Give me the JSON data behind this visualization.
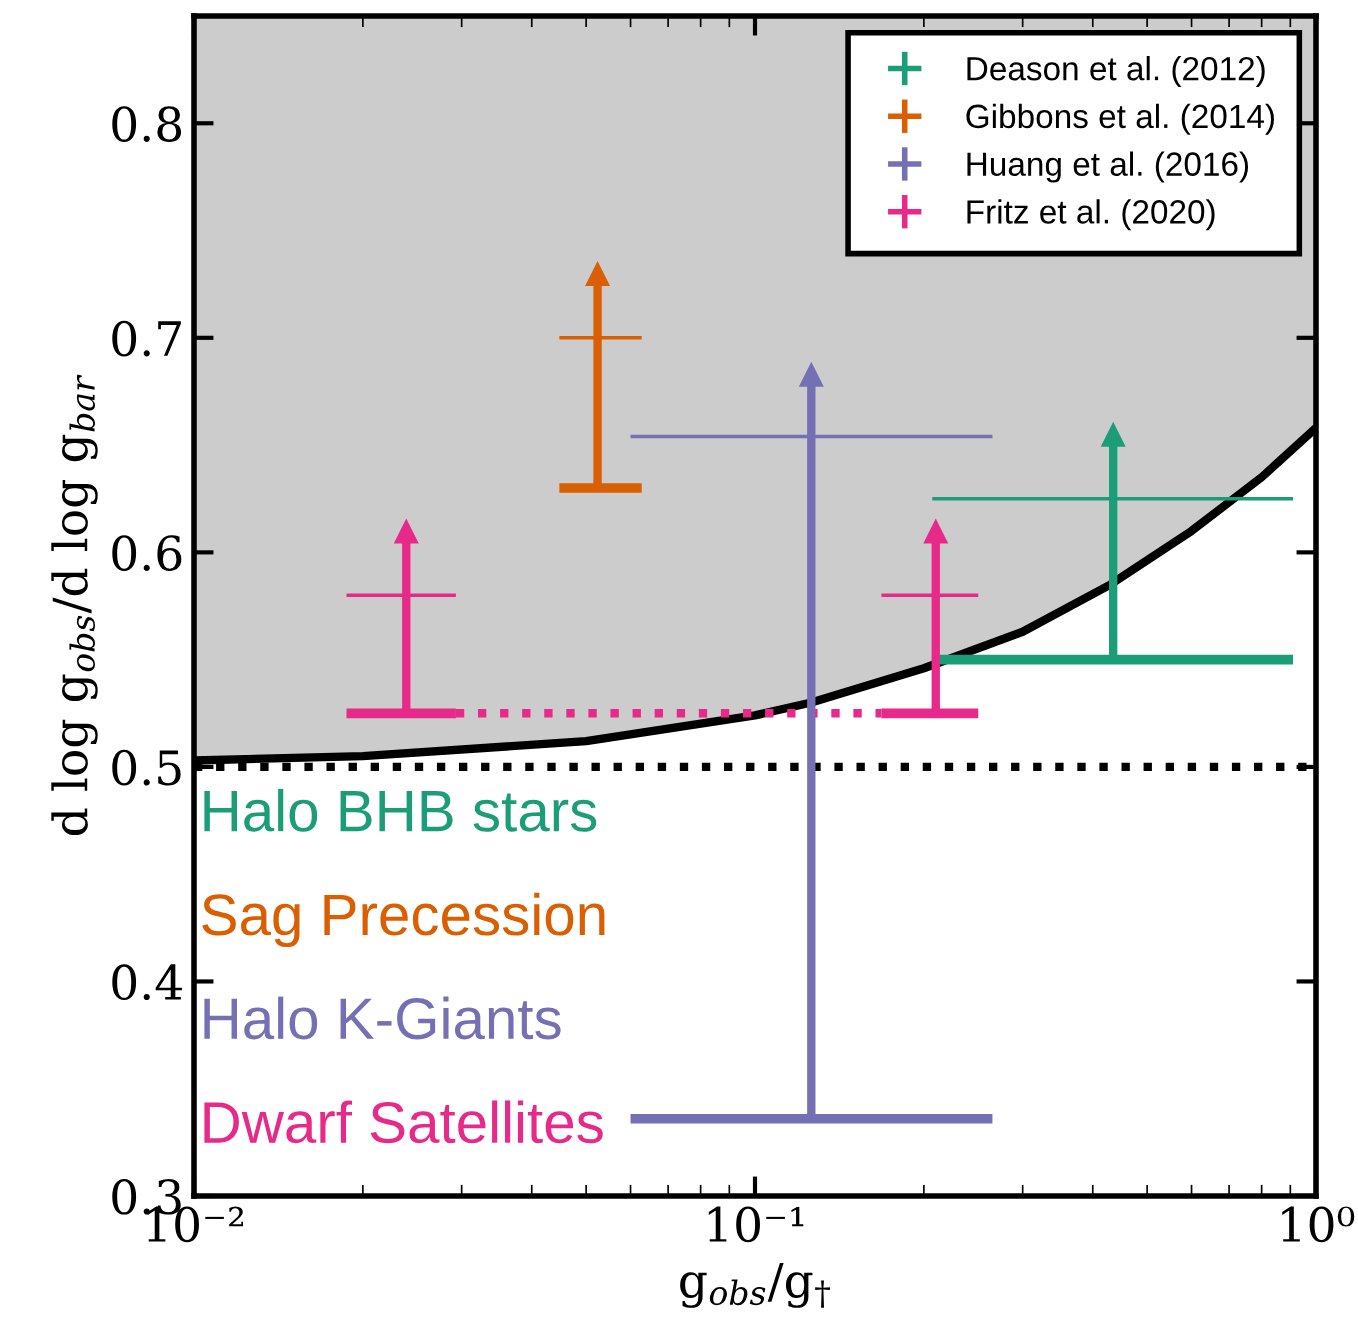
{
  "chart_data": {
    "type": "scatter",
    "xlabel": "g$_{obs}$/g$_{†}$",
    "ylabel": "d log g$_{obs}$/d log g$_{bar}$",
    "log": "x",
    "xlim": [
      0.01,
      1
    ],
    "ylim": [
      0.3,
      0.85
    ],
    "xticks": [
      {
        "value": 0.01,
        "label": "10⁻²"
      },
      {
        "value": 0.1,
        "label": "10⁻¹"
      },
      {
        "value": 1,
        "label": "10⁰"
      }
    ],
    "yticks": [
      0.3,
      0.4,
      0.5,
      0.6,
      0.7,
      0.8
    ],
    "grid": false,
    "legend": "top right",
    "marker": "none",
    "ref_lines": [
      {
        "axis": "y",
        "value": 0.5,
        "color": "#000000",
        "line_style": "dotted"
      }
    ],
    "series": [
      {
        "type": "line",
        "color": "#000000",
        "x": [
          0.01,
          0.02,
          0.05,
          0.1,
          0.126,
          0.2,
          0.3,
          0.43,
          0.6,
          0.8,
          1.0
        ],
        "values": [
          0.503,
          0.505,
          0.512,
          0.524,
          0.53,
          0.546,
          0.563,
          0.585,
          0.61,
          0.635,
          0.658
        ],
        "lower": [
          0.503,
          0.505,
          0.512,
          0.524,
          0.53,
          0.546,
          0.563,
          0.585,
          0.61,
          0.635,
          0.658
        ],
        "upper": [
          0.85,
          0.85,
          0.85,
          0.85,
          0.85,
          0.85,
          0.85,
          0.85,
          0.85,
          0.85,
          0.85
        ]
      },
      {
        "type": "line",
        "color": "#e7298a",
        "line_style": "dotted",
        "x": [
          0.0293,
          0.168
        ],
        "values": [
          0.525,
          0.525
        ]
      },
      {
        "name": "Deason et al. (2012)",
        "color": "#1b9e77",
        "marker": "triangle",
        "x": [
          0.435
        ],
        "values": [
          0.655
        ],
        "errors": [
          [
            0.55,
            0.655
          ]
        ]
      },
      {
        "name": "Gibbons et al. (2014)",
        "color": "#d95f02",
        "marker": "triangle",
        "x": [
          0.0524
        ],
        "values": [
          0.73
        ],
        "errors": [
          [
            0.63,
            0.73
          ]
        ]
      },
      {
        "name": "Huang et al. (2016)",
        "color": "#7570b3",
        "marker": "triangle",
        "x": [
          0.126
        ],
        "values": [
          0.683
        ],
        "errors": [
          [
            0.336,
            0.683
          ]
        ]
      },
      {
        "name": "Fritz et al. (2020)",
        "color": "#e7298a",
        "marker": "triangle",
        "x": [
          0.0239,
          0.21
        ],
        "values": [
          0.61,
          0.61
        ],
        "errors": [
          [
            0.525,
            0.61
          ],
          [
            0.525,
            0.61
          ]
        ]
      },
      {
        "type": "line",
        "color": "#1b9e77",
        "x": [
          0.207,
          0.91
        ],
        "values": [
          0.55,
          0.55
        ]
      },
      {
        "type": "line",
        "color": "#1b9e77",
        "x": [
          0.207,
          0.91
        ],
        "values": [
          0.625,
          0.625
        ]
      },
      {
        "type": "line",
        "color": "#d95f02",
        "x": [
          0.0448,
          0.0628
        ],
        "values": [
          0.63,
          0.63
        ]
      },
      {
        "type": "line",
        "color": "#d95f02",
        "x": [
          0.0448,
          0.0628
        ],
        "values": [
          0.7,
          0.7
        ]
      },
      {
        "type": "line",
        "color": "#7570b3",
        "x": [
          0.06,
          0.265
        ],
        "values": [
          0.336,
          0.336
        ]
      },
      {
        "type": "line",
        "color": "#7570b3",
        "x": [
          0.06,
          0.265
        ],
        "values": [
          0.654,
          0.654
        ]
      },
      {
        "type": "line",
        "color": "#e7298a",
        "x": [
          0.0187,
          0.0293
        ],
        "values": [
          0.525,
          0.525
        ]
      },
      {
        "type": "line",
        "color": "#e7298a",
        "x": [
          0.0187,
          0.0293
        ],
        "values": [
          0.58,
          0.58
        ]
      },
      {
        "type": "line",
        "color": "#e7298a",
        "x": [
          0.168,
          0.25
        ],
        "values": [
          0.525,
          0.525
        ]
      },
      {
        "type": "line",
        "color": "#e7298a",
        "x": [
          0.168,
          0.25
        ],
        "values": [
          0.58,
          0.58
        ]
      }
    ],
    "annotations": [
      "Halo BHB stars",
      "Sag Precession",
      "Halo K-Giants",
      "Dwarf Satellites"
    ]
  }
}
